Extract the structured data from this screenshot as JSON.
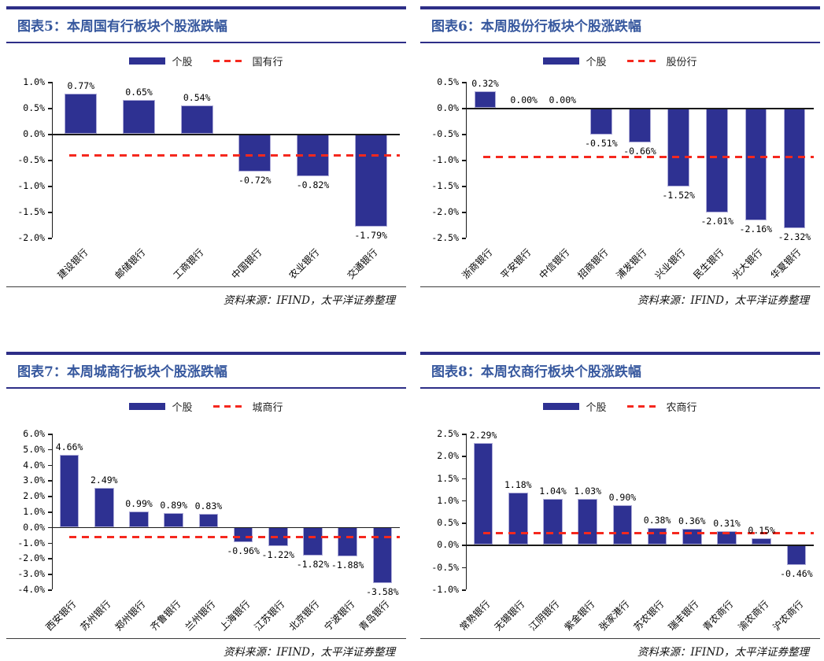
{
  "chart_data": [
    {
      "type": "bar",
      "title": "图表5：本周国有行板块个股涨跌幅",
      "series_label": "个股",
      "index_label": "国有行",
      "legend_position": "top",
      "grid": false,
      "categories": [
        "建设银行",
        "邮储银行",
        "工商银行",
        "中国银行",
        "农业银行",
        "交通银行"
      ],
      "values": [
        0.77,
        0.65,
        0.54,
        -0.72,
        -0.82,
        -1.79
      ],
      "data_labels": [
        "0.77%",
        "0.65%",
        "0.54%",
        "-0.72%",
        "-0.82%",
        "-1.79%"
      ],
      "index_line": -0.41,
      "ylim": [
        -2.0,
        1.0
      ],
      "ytick_step": 0.5,
      "bar_color": "#2e3192",
      "line_color": "#f5281e",
      "source": "资料来源：IFIND，太平洋证券整理"
    },
    {
      "type": "bar",
      "title": "图表6：本周股份行板块个股涨跌幅",
      "series_label": "个股",
      "index_label": "股份行",
      "legend_position": "top",
      "grid": false,
      "categories": [
        "浙商银行",
        "平安银行",
        "中信银行",
        "招商银行",
        "浦发银行",
        "兴业银行",
        "民生银行",
        "光大银行",
        "华夏银行"
      ],
      "values": [
        0.32,
        0.0,
        0.0,
        -0.51,
        -0.66,
        -1.52,
        -2.01,
        -2.16,
        -2.32
      ],
      "data_labels": [
        "0.32%",
        "0.00%",
        "0.00%",
        "-0.51%",
        "-0.66%",
        "-1.52%",
        "-2.01%",
        "-2.16%",
        "-2.32%"
      ],
      "index_line": -0.94,
      "ylim": [
        -2.5,
        0.5
      ],
      "ytick_step": 0.5,
      "bar_color": "#2e3192",
      "line_color": "#f5281e",
      "source": "资料来源：IFIND，太平洋证券整理"
    },
    {
      "type": "bar",
      "title": "图表7：本周城商行板块个股涨跌幅",
      "series_label": "个股",
      "index_label": "城商行",
      "legend_position": "top",
      "grid": false,
      "categories": [
        "西安银行",
        "苏州银行",
        "郑州银行",
        "齐鲁银行",
        "兰州银行",
        "上海银行",
        "江苏银行",
        "北京银行",
        "宁波银行",
        "青岛银行"
      ],
      "values": [
        4.66,
        2.49,
        0.99,
        0.89,
        0.83,
        -0.96,
        -1.22,
        -1.82,
        -1.88,
        -3.58
      ],
      "data_labels": [
        "4.66%",
        "2.49%",
        "0.99%",
        "0.89%",
        "0.83%",
        "-0.96%",
        "-1.22%",
        "-1.82%",
        "-1.88%",
        "-3.58%"
      ],
      "index_line": -0.65,
      "ylim": [
        -4.0,
        6.0
      ],
      "ytick_step": 1.0,
      "bar_color": "#2e3192",
      "line_color": "#f5281e",
      "source": "资料来源：IFIND，太平洋证券整理"
    },
    {
      "type": "bar",
      "title": "图表8：本周农商行板块个股涨跌幅",
      "series_label": "个股",
      "index_label": "农商行",
      "legend_position": "top",
      "grid": false,
      "categories": [
        "常熟银行",
        "无锡银行",
        "江阴银行",
        "紫金银行",
        "张家港行",
        "苏农银行",
        "瑞丰银行",
        "青农商行",
        "渝农商行",
        "沪农商行"
      ],
      "values": [
        2.29,
        1.18,
        1.04,
        1.03,
        0.9,
        0.38,
        0.36,
        0.31,
        0.15,
        -0.46
      ],
      "data_labels": [
        "2.29%",
        "1.18%",
        "1.04%",
        "1.03%",
        "0.90%",
        "0.38%",
        "0.36%",
        "0.31%",
        "0.15%",
        "-0.46%"
      ],
      "index_line": 0.26,
      "ylim": [
        -1.0,
        2.5
      ],
      "ytick_step": 0.5,
      "bar_color": "#2e3192",
      "line_color": "#f5281e",
      "source": "资料来源：IFIND，太平洋证券整理"
    }
  ]
}
